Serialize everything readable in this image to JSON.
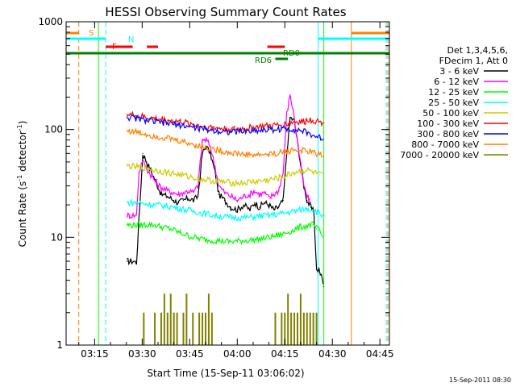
{
  "chart_data": {
    "type": "line",
    "title": "HESSI Observing Summary Count Rates",
    "xlabel": "Start Time (15-Sep-11 03:06:02)",
    "ylabel_main": "Count Rate (s",
    "ylabel_sup1": "-1",
    "ylabel_mid": " detector",
    "ylabel_sup2": "-1",
    "ylabel_end": ")",
    "y_scale": "log",
    "ylim": [
      1,
      1000
    ],
    "xlim_minutes": [
      0,
      102
    ],
    "x_ticks": [
      {
        "label": "03:15",
        "min": 9
      },
      {
        "label": "03:30",
        "min": 24
      },
      {
        "label": "03:45",
        "min": 39
      },
      {
        "label": "04:00",
        "min": 54
      },
      {
        "label": "04:15",
        "min": 69
      },
      {
        "label": "04:30",
        "min": 84
      },
      {
        "label": "04:45",
        "min": 99
      }
    ],
    "y_ticks": [
      {
        "label": "1",
        "value": 1
      },
      {
        "label": "10",
        "value": 10
      },
      {
        "label": "100",
        "value": 100
      },
      {
        "label": "1000",
        "value": 1000
      }
    ],
    "legend_title_1": "Det 1,3,4,5,6,",
    "legend_title_2": "FDecim 1, Att 0",
    "series": [
      {
        "name": "3 - 6 keV",
        "color": "#000000",
        "x": [
          19.2,
          20.4,
          21.4,
          22.2,
          23.6,
          24.2,
          25.4,
          27,
          28.5,
          30,
          32,
          34,
          35.5,
          37,
          38.7,
          40.2,
          41.6,
          43,
          44.2,
          45.5,
          47,
          48.2,
          50,
          52,
          54,
          56,
          58,
          59.5,
          61,
          62.5,
          64,
          65.5,
          67,
          68.5,
          69.6,
          70.7,
          72,
          73.5,
          75,
          76,
          77.2,
          78.2,
          79,
          79.8,
          80.9,
          81.3
        ],
        "y": [
          6,
          6,
          6,
          5.8,
          30,
          60,
          50,
          40,
          32,
          25,
          24,
          22,
          21,
          22,
          23,
          22,
          24,
          60,
          70,
          60,
          40,
          25,
          22,
          19,
          18,
          20,
          18,
          21,
          19,
          21,
          20,
          18,
          19,
          22,
          60,
          130,
          120,
          60,
          30,
          22,
          19,
          17,
          5,
          5,
          4,
          3.5
        ]
      },
      {
        "name": "6 - 12 keV",
        "color": "#ff00ff",
        "x": [
          19.2,
          20.4,
          22.2,
          23,
          24,
          25.5,
          27,
          28.5,
          30,
          32,
          34,
          35.5,
          37,
          38.7,
          40.2,
          41.6,
          43,
          44.2,
          45.5,
          47,
          48.2,
          50,
          52,
          54,
          56,
          58,
          59.5,
          61,
          62.5,
          64,
          65.5,
          67,
          68.5,
          69.6,
          70.7,
          72,
          73.5,
          75,
          76,
          77.2
        ],
        "y": [
          16,
          16,
          16,
          40,
          52,
          43,
          37,
          32,
          29,
          27,
          26,
          25,
          26,
          27,
          26,
          30,
          80,
          80,
          70,
          45,
          30,
          26,
          24,
          22,
          24,
          25,
          27,
          25,
          26,
          23,
          25,
          27,
          40,
          140,
          210,
          130,
          60,
          30,
          24,
          21
        ]
      },
      {
        "name": "12 - 25 keV",
        "color": "#00ff00",
        "x": [
          19.2,
          20.4,
          22,
          24,
          26,
          28,
          30,
          33,
          36,
          40,
          44,
          48,
          52,
          56,
          60,
          64,
          68,
          70,
          72,
          74,
          76,
          78,
          79,
          80,
          81.3
        ],
        "y": [
          13,
          13,
          13,
          13,
          13.2,
          13,
          12.5,
          12,
          11,
          10,
          9.5,
          9.3,
          9.1,
          9.3,
          9.5,
          10,
          10.6,
          11.2,
          11.7,
          12.5,
          12.8,
          13.1,
          12,
          11.5,
          9.5
        ]
      },
      {
        "name": "25 - 50 keV",
        "color": "#00ffff",
        "x": [
          19.2,
          22,
          25,
          28,
          32,
          36,
          40,
          44,
          48,
          52,
          56,
          60,
          64,
          68,
          70,
          72,
          74,
          76,
          78,
          79,
          80,
          81.3
        ],
        "y": [
          21,
          21,
          20.5,
          20,
          19.5,
          18.5,
          17.5,
          16.5,
          15.8,
          15.3,
          15.2,
          15.6,
          16,
          16.6,
          17,
          17.5,
          18,
          18.5,
          18,
          17.2,
          16.8,
          15.5
        ]
      },
      {
        "name": "50 - 100 keV",
        "color": "#cccc00",
        "x": [
          19.2,
          22,
          25,
          28,
          32,
          36,
          40,
          44,
          48,
          52,
          56,
          60,
          64,
          68,
          70,
          72,
          74,
          76,
          78,
          80,
          81.3
        ],
        "y": [
          46,
          45,
          44,
          42,
          40,
          38,
          36,
          34,
          33,
          32,
          32,
          33,
          34,
          36,
          38,
          40,
          41,
          42,
          40,
          38,
          37
        ]
      },
      {
        "name": "100 - 300 keV",
        "color": "#ff0000",
        "x": [
          19.2,
          22,
          25,
          28,
          32,
          36,
          40,
          44,
          48,
          52,
          56,
          60,
          64,
          68,
          70,
          72,
          74,
          75.5,
          76,
          78,
          80,
          81.3
        ],
        "y": [
          138,
          135,
          130,
          126,
          122,
          118,
          112,
          106,
          103,
          100,
          102,
          106,
          108,
          110,
          113,
          118,
          118,
          118,
          124,
          122,
          118,
          115
        ]
      },
      {
        "name": "300 - 800 keV",
        "color": "#0000ff",
        "x": [
          19.2,
          22,
          25,
          28,
          32,
          36,
          40,
          44,
          48,
          52,
          56,
          60,
          64,
          68,
          70,
          72,
          74,
          76,
          78,
          80,
          81.3
        ],
        "y": [
          130,
          127,
          122,
          118,
          114,
          110,
          105,
          100,
          97,
          95,
          96,
          98,
          100,
          101,
          102,
          100,
          98,
          93,
          88,
          84,
          82
        ]
      },
      {
        "name": "800 - 7000 keV",
        "color": "#ff8000",
        "x": [
          19.2,
          22,
          25,
          28,
          32,
          36,
          40,
          44,
          48,
          52,
          56,
          60,
          64,
          68,
          70,
          72,
          74,
          76,
          78,
          80,
          81.3
        ],
        "y": [
          98,
          95,
          91,
          87,
          83,
          78,
          73,
          68,
          64,
          61,
          59,
          58,
          59,
          61,
          63,
          65,
          64,
          63,
          61,
          59,
          58
        ]
      },
      {
        "name": "7000 - 20000 keV",
        "color": "#808000",
        "x": [
          24.5,
          24.5,
          28,
          30,
          31,
          32,
          33,
          34,
          35,
          37,
          38,
          40,
          42,
          43,
          44,
          45,
          46,
          48,
          50,
          52,
          53,
          55,
          57,
          59,
          61,
          63,
          65,
          66,
          68,
          69,
          70,
          71,
          72,
          73,
          74,
          75,
          76,
          77,
          78,
          79,
          80
        ],
        "y": [
          1,
          2,
          2,
          2,
          3,
          2,
          3,
          2,
          2,
          2,
          3,
          2,
          2,
          2,
          2,
          3,
          2,
          1,
          1,
          1,
          1,
          1,
          1,
          1,
          1,
          1,
          1,
          2,
          2,
          2,
          3,
          2,
          2,
          2,
          3,
          2,
          2,
          2,
          2,
          2,
          1
        ]
      }
    ],
    "flags": {
      "s_label": "S",
      "n_label": "N",
      "f_label": "F",
      "rd0_label": "RD0",
      "rd6_label": "RD6",
      "s_color": "#ff8000",
      "n_color": "#00ffff",
      "f_color": "#ff0000",
      "rd_color": "#008000",
      "s_segments": [
        [
          0,
          4
        ],
        [
          90,
          102
        ]
      ],
      "n_segments": [
        [
          0,
          12.5
        ],
        [
          79.5,
          102
        ]
      ],
      "f_segments": [
        [
          12.5,
          21
        ],
        [
          25.5,
          29
        ],
        [
          63.5,
          69
        ]
      ],
      "rd0_segments": [
        [
          0,
          102
        ]
      ],
      "rd6_segments": [
        [
          66,
          70
        ]
      ]
    },
    "vlines": [
      {
        "min": 4,
        "color": "#ff8000",
        "style": "dashed"
      },
      {
        "min": 10.2,
        "color": "#00ff00",
        "style": "solid"
      },
      {
        "min": 12.5,
        "color": "#00ffff",
        "style": "dashed"
      },
      {
        "min": 79.5,
        "color": "#00ffff",
        "style": "solid"
      },
      {
        "min": 81.3,
        "color": "#00ff00",
        "style": "solid"
      },
      {
        "min": 90,
        "color": "#ff8000",
        "style": "solid"
      },
      {
        "min": 101,
        "color": "#00ffff",
        "style": "dashed"
      },
      {
        "min": 101.5,
        "color": "#ff8000",
        "style": "dashed"
      }
    ]
  },
  "footer_date": "15-Sep-2011 08:30"
}
